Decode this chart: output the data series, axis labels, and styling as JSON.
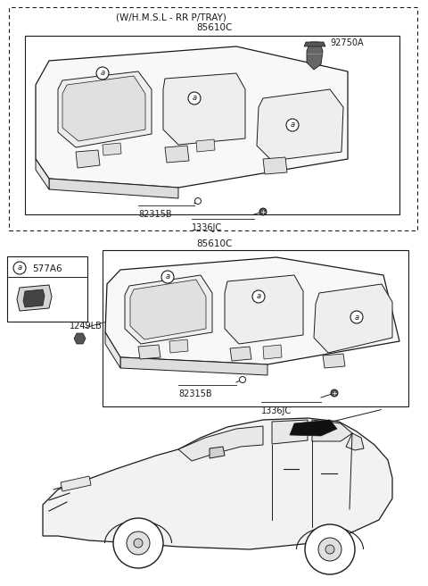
{
  "bg_color": "#ffffff",
  "line_color": "#1a1a1a",
  "top_box_label": "(W/H.M.S.L - RR P/TRAY)",
  "top_box_part": "85610C",
  "top_box_part2": "92750A",
  "top_box_part3": "82315B",
  "top_box_part4": "1336JC",
  "bottom_box_part": "85610C",
  "bottom_box_part2": "82315B",
  "bottom_box_part3": "1336JC",
  "bottom_box_part4": "1249LB",
  "legend_part": "577A6",
  "fs": 7.0
}
